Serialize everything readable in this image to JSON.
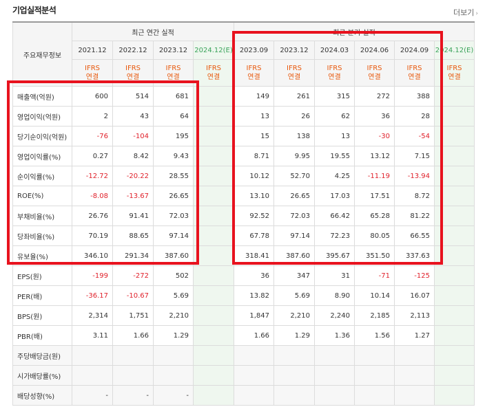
{
  "header": {
    "title": "기업실적분석",
    "more_label": "더보기",
    "more_arrow": "›"
  },
  "table": {
    "corner_label": "주요재무정보",
    "groups": {
      "annual": "최근 연간 실적",
      "quarterly": "최근 분기 실적"
    },
    "annual_dates": [
      "2021.12",
      "2022.12",
      "2023.12",
      "2024.12(E)"
    ],
    "quarter_dates": [
      "2023.09",
      "2023.12",
      "2024.03",
      "2024.06",
      "2024.09",
      "2024.12(E)"
    ],
    "ifrs_top": "IFRS",
    "ifrs_bottom": "연결",
    "rows": [
      {
        "label": "매출액(억원)",
        "annual": [
          "600",
          "514",
          "681",
          ""
        ],
        "quarter": [
          "149",
          "261",
          "315",
          "272",
          "388",
          ""
        ]
      },
      {
        "label": "영업이익(억원)",
        "annual": [
          "2",
          "43",
          "64",
          ""
        ],
        "quarter": [
          "13",
          "26",
          "62",
          "36",
          "28",
          ""
        ]
      },
      {
        "label": "당기순이익(억원)",
        "annual": [
          "-76",
          "-104",
          "195",
          ""
        ],
        "quarter": [
          "15",
          "138",
          "13",
          "-30",
          "-54",
          ""
        ]
      },
      {
        "label": "영업이익률(%)",
        "annual": [
          "0.27",
          "8.42",
          "9.43",
          ""
        ],
        "quarter": [
          "8.71",
          "9.95",
          "19.55",
          "13.12",
          "7.15",
          ""
        ]
      },
      {
        "label": "순이익률(%)",
        "annual": [
          "-12.72",
          "-20.22",
          "28.55",
          ""
        ],
        "quarter": [
          "10.12",
          "52.70",
          "4.25",
          "-11.19",
          "-13.94",
          ""
        ]
      },
      {
        "label": "ROE(%)",
        "annual": [
          "-8.08",
          "-13.67",
          "26.65",
          ""
        ],
        "quarter": [
          "13.10",
          "26.65",
          "17.03",
          "17.51",
          "8.72",
          ""
        ]
      },
      {
        "label": "부채비율(%)",
        "annual": [
          "26.76",
          "91.41",
          "72.03",
          ""
        ],
        "quarter": [
          "92.52",
          "72.03",
          "66.42",
          "65.28",
          "81.22",
          ""
        ]
      },
      {
        "label": "당좌비율(%)",
        "annual": [
          "70.19",
          "88.65",
          "97.14",
          ""
        ],
        "quarter": [
          "67.78",
          "97.14",
          "72.23",
          "80.05",
          "66.55",
          ""
        ]
      },
      {
        "label": "유보율(%)",
        "annual": [
          "346.10",
          "291.34",
          "387.60",
          ""
        ],
        "quarter": [
          "318.41",
          "387.60",
          "395.67",
          "351.50",
          "337.63",
          ""
        ]
      },
      {
        "label": "EPS(원)",
        "annual": [
          "-199",
          "-272",
          "502",
          ""
        ],
        "quarter": [
          "36",
          "347",
          "31",
          "-71",
          "-125",
          ""
        ]
      },
      {
        "label": "PER(배)",
        "annual": [
          "-36.17",
          "-10.67",
          "5.69",
          ""
        ],
        "quarter": [
          "13.82",
          "5.69",
          "8.90",
          "10.14",
          "16.07",
          ""
        ]
      },
      {
        "label": "BPS(원)",
        "annual": [
          "2,314",
          "1,751",
          "2,210",
          ""
        ],
        "quarter": [
          "1,847",
          "2,210",
          "2,240",
          "2,185",
          "2,113",
          ""
        ]
      },
      {
        "label": "PBR(배)",
        "annual": [
          "3.11",
          "1.66",
          "1.29",
          ""
        ],
        "quarter": [
          "1.66",
          "1.29",
          "1.36",
          "1.56",
          "1.27",
          ""
        ]
      },
      {
        "label": "주당배당금(원)",
        "annual": [
          "",
          "",
          "",
          ""
        ],
        "quarter": [
          "",
          "",
          "",
          "",
          "",
          ""
        ]
      },
      {
        "label": "시가배당률(%)",
        "annual": [
          "",
          "",
          "",
          ""
        ],
        "quarter": [
          "",
          "",
          "",
          "",
          "",
          ""
        ]
      },
      {
        "label": "배당성향(%)",
        "annual": [
          "-",
          "-",
          "-",
          ""
        ],
        "quarter": [
          "",
          "",
          "",
          "",
          "",
          ""
        ]
      }
    ]
  },
  "colors": {
    "highlight": "#e8121e",
    "negative": "#e0202a",
    "ifrs": "#e8580c",
    "estimate": "#3aa35a"
  }
}
